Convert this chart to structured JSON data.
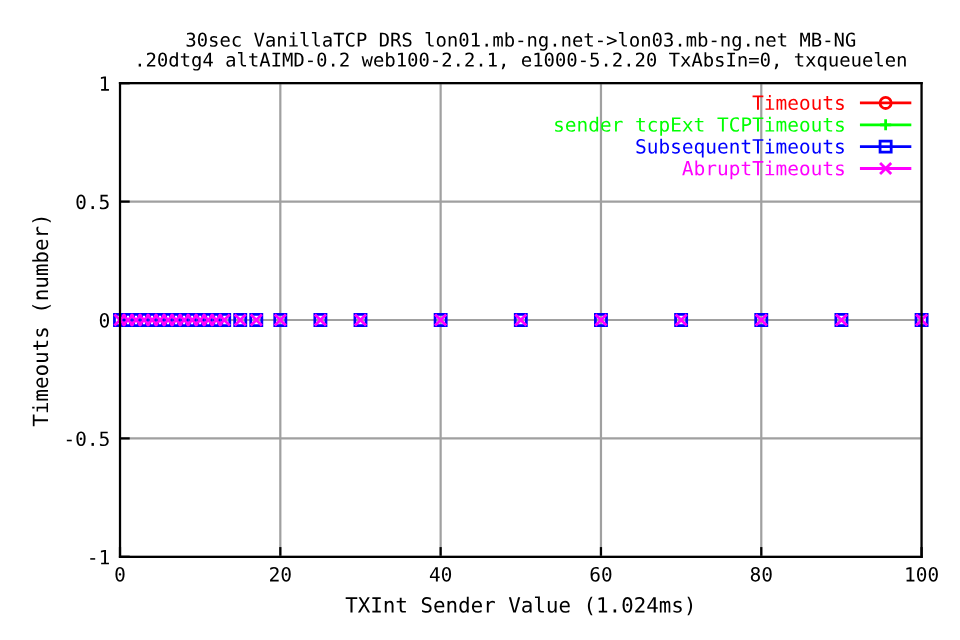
{
  "chart_data": {
    "type": "scatter",
    "title": "30sec VanillaTCP DRS lon01.mb-ng.net->lon03.mb-ng.net MB-NG\n.20dtg4 altAIMD-0.2 web100-2.2.1, e1000-5.2.20 TxAbsIn=0, txqueuelen",
    "xlabel": "TXInt Sender Value (1.024ms)",
    "ylabel": "Timeouts (number)",
    "x": [
      0,
      1,
      2,
      3,
      4,
      5,
      6,
      7,
      8,
      9,
      10,
      11,
      12,
      13,
      15,
      17,
      20,
      25,
      30,
      40,
      50,
      60,
      70,
      80,
      90,
      100
    ],
    "series": [
      {
        "name": "Timeouts",
        "color": "#ff0000",
        "marker": "circle",
        "values": [
          null,
          null,
          null,
          null,
          null,
          null,
          null,
          null,
          null,
          null,
          null,
          null,
          null,
          null,
          null,
          null,
          null,
          null,
          null,
          null,
          null,
          null,
          null,
          null,
          null,
          null
        ]
      },
      {
        "name": "sender tcpExt TCPTimeouts",
        "color": "#00ff00",
        "marker": "plus",
        "values": [
          null,
          null,
          null,
          null,
          null,
          null,
          null,
          null,
          null,
          null,
          null,
          null,
          null,
          null,
          null,
          null,
          null,
          null,
          null,
          null,
          null,
          null,
          null,
          null,
          null,
          null
        ]
      },
      {
        "name": "SubsequentTimeouts",
        "color": "#0000ff",
        "marker": "square",
        "values": [
          0,
          0,
          0,
          0,
          0,
          0,
          0,
          0,
          0,
          0,
          0,
          0,
          0,
          0,
          0,
          0,
          0,
          0,
          0,
          0,
          0,
          0,
          0,
          0,
          0,
          0
        ]
      },
      {
        "name": "AbruptTimeouts",
        "color": "#ff00ff",
        "marker": "cross",
        "values": [
          0,
          0,
          0,
          0,
          0,
          0,
          0,
          0,
          0,
          0,
          0,
          0,
          0,
          0,
          0,
          0,
          0,
          0,
          0,
          0,
          0,
          0,
          0,
          0,
          0,
          0
        ]
      }
    ],
    "xlim": [
      0,
      100
    ],
    "xticks": [
      0,
      20,
      40,
      60,
      80,
      100
    ],
    "ylim": [
      -1,
      1
    ],
    "yticks": [
      -1,
      -0.5,
      0,
      0.5,
      1
    ],
    "grid": true,
    "legend": "top right"
  }
}
